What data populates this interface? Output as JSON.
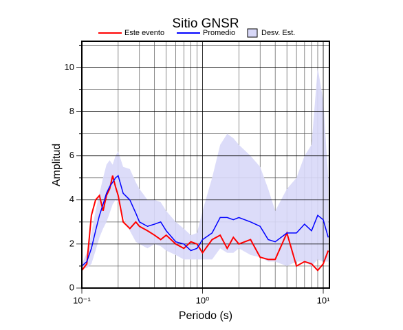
{
  "chart_data": {
    "type": "line",
    "title": "Sitio GNSR",
    "xlabel": "Periodo (s)",
    "ylabel": "Amplitud",
    "xscale": "log",
    "x": [
      0.1,
      0.11,
      0.12,
      0.13,
      0.14,
      0.15,
      0.16,
      0.17,
      0.18,
      0.19,
      0.2,
      0.22,
      0.25,
      0.28,
      0.3,
      0.35,
      0.4,
      0.45,
      0.5,
      0.6,
      0.7,
      0.8,
      0.9,
      1.0,
      1.2,
      1.4,
      1.6,
      1.8,
      2,
      2.5,
      3,
      3.5,
      4,
      5,
      6,
      7,
      8,
      9,
      10,
      11
    ],
    "series": [
      {
        "name": "Este evento",
        "color": "#ff0000",
        "values": [
          0.8,
          1.1,
          3.3,
          4.0,
          4.2,
          3.5,
          4.2,
          4.5,
          5.1,
          4.6,
          4.2,
          3.0,
          2.7,
          3.0,
          2.8,
          2.6,
          2.4,
          2.2,
          2.4,
          2.0,
          1.8,
          2.1,
          2.0,
          1.6,
          2.2,
          2.4,
          1.8,
          2.3,
          2.0,
          2.2,
          1.4,
          1.3,
          1.3,
          2.5,
          1.0,
          1.2,
          1.1,
          0.8,
          1.1,
          1.7
        ]
      },
      {
        "name": "Promedio",
        "color": "#0000ff",
        "values": [
          1.0,
          1.2,
          1.8,
          2.6,
          3.3,
          3.8,
          4.3,
          4.6,
          4.8,
          5.0,
          5.1,
          4.3,
          4.0,
          3.4,
          3.0,
          2.8,
          2.9,
          3.0,
          2.6,
          2.1,
          2.0,
          1.7,
          1.8,
          2.2,
          2.5,
          3.2,
          3.2,
          3.1,
          3.2,
          3.0,
          2.8,
          2.2,
          2.1,
          2.5,
          2.5,
          2.9,
          2.6,
          3.3,
          3.1,
          2.3
        ]
      }
    ],
    "band": {
      "name": "Desv. Est.",
      "color": "#d8d8f8",
      "upper": [
        1.1,
        1.6,
        2.5,
        3.5,
        4.3,
        5.0,
        5.6,
        5.8,
        5.6,
        6.0,
        6.2,
        5.5,
        5.4,
        4.8,
        4.5,
        4.0,
        4.0,
        3.9,
        3.5,
        3.0,
        2.7,
        2.4,
        2.5,
        3.5,
        5.0,
        6.5,
        7.0,
        6.8,
        6.5,
        6.0,
        5.5,
        4.5,
        3.5,
        4.5,
        5.0,
        6.0,
        6.5,
        10.0,
        8.5,
        5.0
      ],
      "lower": [
        0.9,
        0.9,
        1.1,
        1.7,
        2.3,
        2.7,
        3.0,
        3.4,
        3.8,
        4.0,
        3.9,
        3.2,
        2.6,
        2.1,
        2.0,
        1.8,
        2.0,
        1.9,
        1.7,
        1.5,
        1.3,
        1.3,
        1.3,
        1.3,
        1.3,
        1.8,
        1.6,
        1.6,
        1.8,
        1.5,
        1.4,
        1.2,
        1.2,
        1.0,
        1.2,
        1.2,
        1.0,
        1.3,
        1.2,
        1.2
      ]
    },
    "xlim": [
      0.1,
      11.25
    ],
    "ylim": [
      0,
      11.2
    ],
    "xticks": [
      {
        "value": 0.1,
        "label": "10⁻¹"
      },
      {
        "value": 1,
        "label": "10⁰"
      },
      {
        "value": 10,
        "label": "10¹"
      }
    ],
    "yticks": [
      0,
      2,
      4,
      6,
      8,
      10
    ],
    "xminor": [
      0.2,
      0.3,
      0.4,
      0.5,
      0.6,
      0.7,
      0.8,
      0.9,
      2,
      3,
      4,
      5,
      6,
      7,
      8,
      9
    ],
    "yminor": [
      1,
      3,
      5,
      7,
      9,
      11
    ],
    "grid": true
  }
}
